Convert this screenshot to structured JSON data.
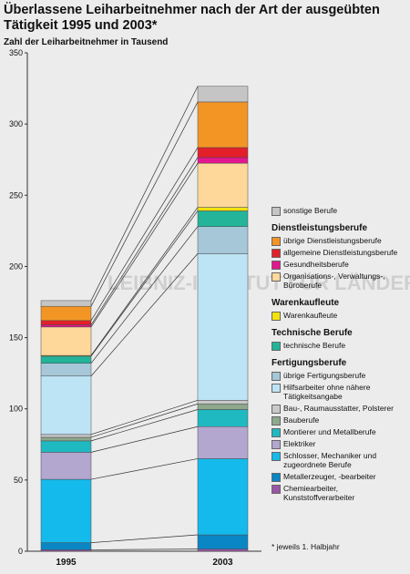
{
  "title": "Überlassene Leiharbeitnehmer nach der Art der ausgeübten Tätigkeit 1995 und 2003*",
  "subtitle": "Zahl der Leiharbeitnehmer in Tausend",
  "footnote": "* jeweils 1. Halbjahr",
  "watermark": "LEIBNIZ-INSTITUT FÜR LÄNDERKUNDE",
  "colors": {
    "chemie": "#9a55a6",
    "metallerzeuger": "#0a86c4",
    "schlosser": "#15baec",
    "elektriker": "#b3a6cf",
    "montierer": "#1fb9c1",
    "bauberufe": "#8fa88c",
    "bau_raum": "#c9c9c9",
    "hilfsarbeiter": "#bde4f5",
    "uebrige_fert": "#a6c7d8",
    "technische": "#23b49a",
    "warenkauf": "#f2e10f",
    "organisation": "#fdd89a",
    "gesundheit": "#e4168f",
    "allgemeine": "#e3202a",
    "uebrige_dienst": "#f39525",
    "sonstige": "#c5c5c5"
  },
  "legend": {
    "sonstige": "sonstige Berufe",
    "groups": [
      {
        "title": "Dienstleistungsberufe",
        "items": [
          {
            "key": "uebrige_dienst",
            "label": "übrige Dienstleistungsberufe"
          },
          {
            "key": "allgemeine",
            "label": "allgemeine Dienstleistungsberufe"
          },
          {
            "key": "gesundheit",
            "label": "Gesundheitsberufe"
          },
          {
            "key": "organisation",
            "label": "Organisations-, Verwaltungs-, Büroberufe"
          }
        ]
      },
      {
        "title": "Warenkaufleute",
        "items": [
          {
            "key": "warenkauf",
            "label": "Warenkaufleute"
          }
        ]
      },
      {
        "title": "Technische Berufe",
        "items": [
          {
            "key": "technische",
            "label": "technische Berufe"
          }
        ]
      },
      {
        "title": "Fertigungsberufe",
        "items": [
          {
            "key": "uebrige_fert",
            "label": "übrige Fertigungsberufe"
          },
          {
            "key": "hilfsarbeiter",
            "label": "Hilfsarbeiter ohne nähere Tätigkeitsangabe"
          },
          {
            "key": "bau_raum",
            "label": "Bau-, Raumausstatter, Polsterer"
          },
          {
            "key": "bauberufe",
            "label": "Bauberufe"
          },
          {
            "key": "montierer",
            "label": "Montierer und Metallberufe"
          },
          {
            "key": "elektriker",
            "label": "Elektriker"
          },
          {
            "key": "schlosser",
            "label": "Schlosser, Mechaniker und zugeordnete Berufe"
          },
          {
            "key": "metallerzeuger",
            "label": "Metallerzeuger, -bearbeiter"
          },
          {
            "key": "chemie",
            "label": "Chemiearbeiter, Kunststoffverarbeiter"
          }
        ]
      }
    ]
  },
  "chart_data": {
    "type": "bar",
    "stacked": true,
    "categories": [
      "1995",
      "2003"
    ],
    "ylim": [
      0,
      350
    ],
    "yticks": [
      0,
      50,
      100,
      150,
      200,
      250,
      300,
      350
    ],
    "grid": false,
    "legend_position": "right",
    "series": [
      {
        "key": "chemie",
        "name": "Chemiearbeiter, Kunststoffverarbeiter",
        "values": [
          1,
          1.5
        ]
      },
      {
        "key": "metallerzeuger",
        "name": "Metallerzeuger, -bearbeiter",
        "values": [
          5,
          10
        ]
      },
      {
        "key": "schlosser",
        "name": "Schlosser, Mechaniker und zugeordnete Berufe",
        "values": [
          44.5,
          53.5
        ]
      },
      {
        "key": "elektriker",
        "name": "Elektriker",
        "values": [
          19,
          22.5
        ]
      },
      {
        "key": "montierer",
        "name": "Montierer und Metallberufe",
        "values": [
          8,
          12
        ]
      },
      {
        "key": "bauberufe",
        "name": "Bauberufe",
        "values": [
          2.5,
          4
        ]
      },
      {
        "key": "bau_raum",
        "name": "Bau-, Raumausstatter, Polsterer",
        "values": [
          2,
          2.5
        ]
      },
      {
        "key": "hilfsarbeiter",
        "name": "Hilfsarbeiter ohne nähere Tätigkeitsangabe",
        "values": [
          41,
          103
        ]
      },
      {
        "key": "uebrige_fert",
        "name": "übrige Fertigungsberufe",
        "values": [
          9,
          19
        ]
      },
      {
        "key": "technische",
        "name": "technische Berufe",
        "values": [
          5,
          11
        ]
      },
      {
        "key": "warenkauf",
        "name": "Warenkaufleute",
        "values": [
          0.5,
          2.5
        ]
      },
      {
        "key": "organisation",
        "name": "Organisations-, Verwaltungs-, Büroberufe",
        "values": [
          20,
          31
        ]
      },
      {
        "key": "gesundheit",
        "name": "Gesundheitsberufe",
        "values": [
          1.5,
          4
        ]
      },
      {
        "key": "allgemeine",
        "name": "allgemeine Dienstleistungsberufe",
        "values": [
          3,
          7
        ]
      },
      {
        "key": "uebrige_dienst",
        "name": "übrige Dienstleistungsberufe",
        "values": [
          10,
          32
        ]
      },
      {
        "key": "sonstige",
        "name": "sonstige Berufe",
        "values": [
          4,
          11
        ]
      }
    ]
  }
}
